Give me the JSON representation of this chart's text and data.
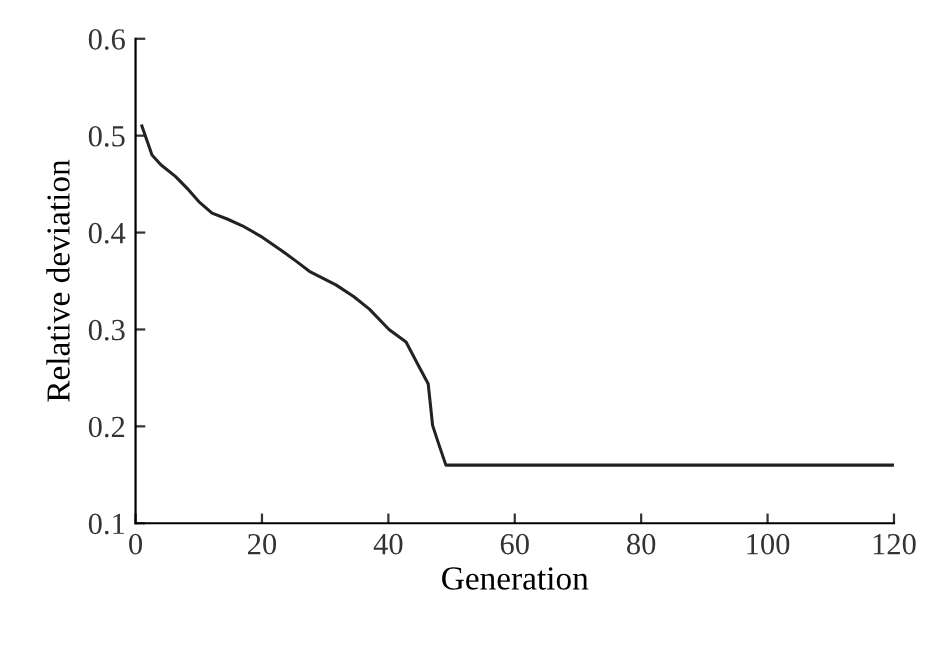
{
  "chart_data": {
    "type": "line",
    "xlabel": "Generation",
    "ylabel": "Relative deviation",
    "series": [
      {
        "color": "#222222",
        "x": [
          1,
          2.6,
          4,
          6.3,
          8.4,
          10,
          12.1,
          14.5,
          16.9,
          20.1,
          23.2,
          25.5,
          27.5,
          31.7,
          34.5,
          37,
          40.1,
          42.8,
          44.9,
          46.3,
          47,
          47.8,
          49.1,
          60,
          80,
          100,
          120
        ],
        "values": [
          0.51,
          0.48,
          0.47,
          0.458,
          0.444,
          0.432,
          0.42,
          0.414,
          0.407,
          0.395,
          0.381,
          0.37,
          0.36,
          0.346,
          0.334,
          0.321,
          0.3,
          0.287,
          0.261,
          0.244,
          0.201,
          0.185,
          0.16,
          0.16,
          0.16,
          0.16,
          0.16
        ]
      }
    ],
    "xlim": [
      0,
      120
    ],
    "xticks": [
      0,
      20,
      40,
      60,
      80,
      100,
      120
    ],
    "ylim": [
      0.1,
      0.6
    ],
    "yticks": [
      0.1,
      0.2,
      0.3,
      0.4,
      0.5,
      0.6
    ],
    "grid": false,
    "legend": false
  }
}
